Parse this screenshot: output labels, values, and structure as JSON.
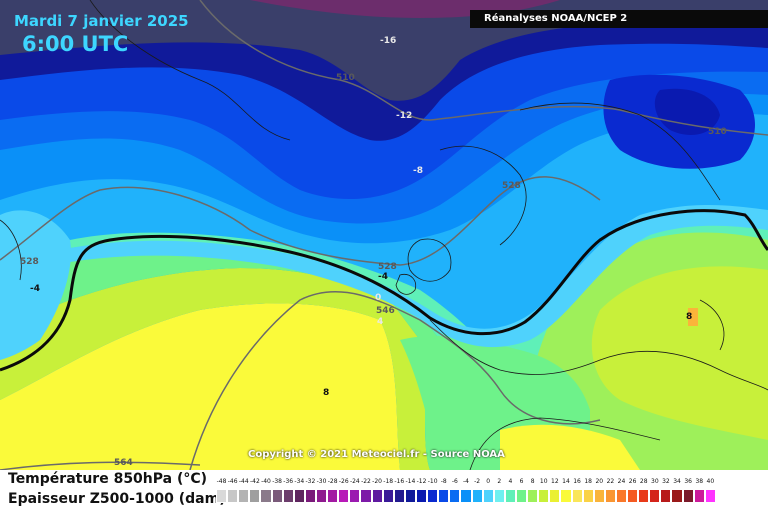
{
  "header": {
    "date": "Mardi 7 janvier 2025",
    "time": "6:00 UTC",
    "source": "Réanalyses NOAA/NCEP 2"
  },
  "copyright": "Copyright © 2021 Meteociel.fr - Source NOAA",
  "legend": {
    "line1": "Température 850hPa (°C)",
    "line2": "Epaisseur Z500-1000 (dam)",
    "scale_labels": [
      "-48",
      "-46",
      "-44",
      "-42",
      "-40",
      "-38",
      "-36",
      "-34",
      "-32",
      "-30",
      "-28",
      "-26",
      "-24",
      "-22",
      "-20",
      "-18",
      "-16",
      "-14",
      "-12",
      "-10",
      "-8",
      "-6",
      "-4",
      "-2",
      "0",
      "2",
      "4",
      "6",
      "8",
      "10",
      "12",
      "14",
      "16",
      "18",
      "20",
      "22",
      "24",
      "26",
      "28",
      "30",
      "32",
      "34",
      "36",
      "38",
      "40"
    ],
    "scale_colors": [
      "#d9d9d9",
      "#c7c7c7",
      "#b3b3b3",
      "#9f9f9f",
      "#8a7a8a",
      "#7a5a7a",
      "#6c3d6c",
      "#5e255e",
      "#7a1a7a",
      "#8f1a8f",
      "#a31aa3",
      "#b81ab8",
      "#9b1ab0",
      "#7d1aa8",
      "#5f1aa0",
      "#3a1a98",
      "#221a8f",
      "#101a9a",
      "#0a1ab0",
      "#0a2ad0",
      "#0a4ae8",
      "#0a6cf2",
      "#0a90f8",
      "#20b2fb",
      "#4fd2fc",
      "#6ff0f0",
      "#5ff0b8",
      "#6ef28a",
      "#9ef05a",
      "#c8f03a",
      "#eaf032",
      "#fafa3a",
      "#fae65a",
      "#fad246",
      "#fab43a",
      "#fa9632",
      "#fa782a",
      "#f55a22",
      "#e83a1a",
      "#d4241a",
      "#b81a1a",
      "#9a1a1a",
      "#7a1a2a",
      "#cc1a9a",
      "#ff33ff"
    ]
  },
  "map_labels": {
    "temperature": [
      {
        "text": "-16",
        "tone": "light"
      },
      {
        "text": "-12",
        "tone": "light"
      },
      {
        "text": "-8",
        "tone": "light"
      },
      {
        "text": "-4",
        "tone": "normal"
      },
      {
        "text": "-4",
        "tone": "normal"
      },
      {
        "text": "0",
        "tone": "light"
      },
      {
        "text": "4",
        "tone": "light"
      },
      {
        "text": "8",
        "tone": "normal"
      },
      {
        "text": "8",
        "tone": "normal"
      }
    ],
    "thickness": [
      {
        "text": "510",
        "tone": "dark"
      },
      {
        "text": "510",
        "tone": "dark"
      },
      {
        "text": "528",
        "tone": "dark"
      },
      {
        "text": "528",
        "tone": "dark"
      },
      {
        "text": "528",
        "tone": "dark"
      },
      {
        "text": "546",
        "tone": "dark"
      },
      {
        "text": "564",
        "tone": "dark"
      }
    ]
  }
}
